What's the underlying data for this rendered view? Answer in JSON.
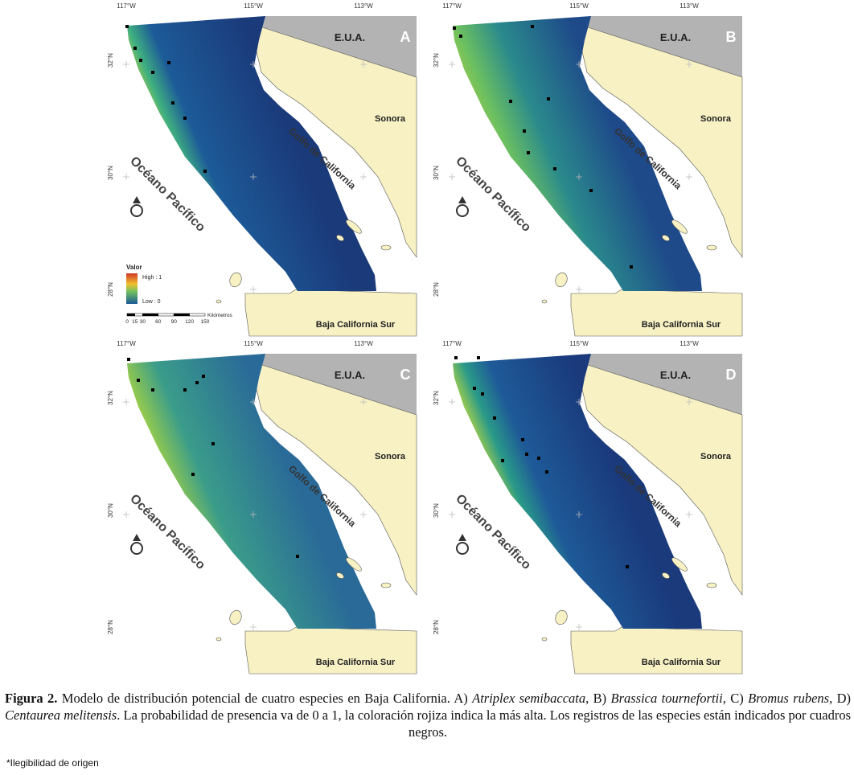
{
  "map_labels": {
    "longitudes": [
      "117°W",
      "115°W",
      "113°W"
    ],
    "latitudes": [
      "32°N",
      "30°N",
      "28°N"
    ],
    "country": "E.U.A.",
    "state": "Sonora",
    "gulf": "Golfo de California",
    "ocean": "Océano Pacífico",
    "southern_state": "Baja California Sur"
  },
  "panels": [
    {
      "letter": "A"
    },
    {
      "letter": "B"
    },
    {
      "letter": "C"
    },
    {
      "letter": "D"
    }
  ],
  "legend": {
    "title": "Valor",
    "high": "High : 1",
    "low": "Low : 0"
  },
  "scale": {
    "ticks": [
      0,
      15,
      30,
      60,
      90,
      120,
      150
    ],
    "unit": "Kilómetros"
  },
  "caption": {
    "label": "Figura 2.",
    "parts": [
      {
        "text": " Modelo de distribución potencial de cuatro especies en Baja California. A) "
      },
      {
        "text": "Atriplex semibaccata",
        "italic": true
      },
      {
        "text": ", B) "
      },
      {
        "text": "Brassica tournefortii",
        "italic": true
      },
      {
        "text": ", C) "
      },
      {
        "text": "Bromus rubens",
        "italic": true
      },
      {
        "text": ", D) "
      },
      {
        "text": "Centaurea melitensis",
        "italic": true
      },
      {
        "text": ". La probabilidad de presencia va de 0 a 1, la coloración rojiza indica la más alta. Los registros de las especies están indicados por cuadros negros."
      }
    ]
  },
  "footnote": "*Ilegibilidad de origen"
}
